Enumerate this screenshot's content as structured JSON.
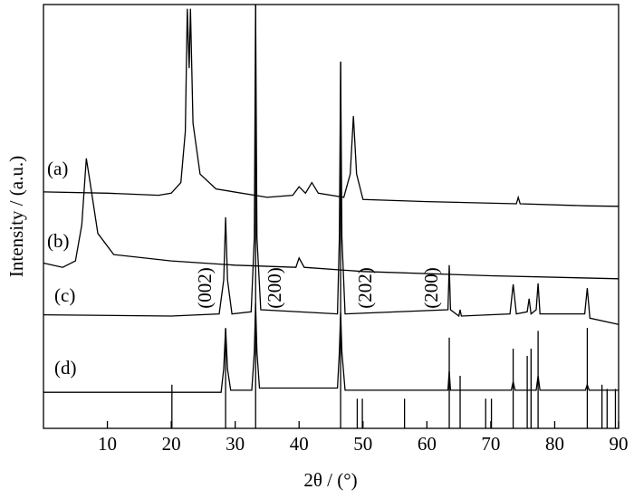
{
  "chart_data": {
    "type": "line",
    "xlabel": "2θ / (°)",
    "ylabel": "Intensity / (a.u.)",
    "xlim": [
      0,
      90
    ],
    "xticks": [
      10,
      20,
      30,
      40,
      50,
      60,
      70,
      80,
      90
    ],
    "ylim": [
      0,
      100
    ],
    "series": [
      {
        "name": "(a)",
        "color": "#000000",
        "x": [
          0,
          10,
          18,
          20,
          21.5,
          22.2,
          22.5,
          22.8,
          23.0,
          23.4,
          24.5,
          27,
          35,
          39,
          40,
          41,
          42,
          43,
          47,
          48,
          48.5,
          49,
          50,
          60,
          74,
          74.3,
          74.6,
          85,
          90
        ],
        "values": [
          55.8,
          55.5,
          55,
          55.5,
          58,
          70,
          99,
          85,
          99,
          72,
          60,
          56.5,
          54.5,
          55,
          57,
          55.5,
          58,
          55.5,
          54.5,
          60,
          73.7,
          60,
          54,
          53.5,
          53,
          54.5,
          53,
          52.5,
          52.4
        ]
      },
      {
        "name": "(b)",
        "color": "#000000",
        "x": [
          0,
          3,
          5,
          6,
          6.7,
          7.3,
          8.5,
          11,
          20,
          30,
          39.5,
          40,
          40.8,
          50,
          70,
          90
        ],
        "values": [
          39,
          38,
          39.5,
          48,
          63.7,
          58,
          46,
          41,
          39.5,
          38.5,
          38,
          40.2,
          38,
          37,
          36,
          35.3
        ]
      },
      {
        "name": "(c)",
        "color": "#000000",
        "x": [
          0,
          20,
          27.5,
          28.2,
          28.5,
          28.8,
          29.5,
          32.5,
          33,
          33.2,
          33.4,
          34,
          46,
          46.3,
          46.5,
          46.7,
          47.2,
          63.3,
          63.5,
          63.7,
          65,
          65.2,
          65.4,
          73,
          73.5,
          74,
          75.7,
          76,
          76.3,
          77.1,
          77.4,
          77.7,
          84.7,
          85.1,
          85.5,
          90
        ],
        "values": [
          26.8,
          26.5,
          27,
          35,
          49.8,
          35,
          27,
          27.5,
          45,
          100,
          45,
          28,
          27,
          45,
          86.5,
          45,
          27,
          28,
          38.5,
          28,
          26.5,
          28,
          26.5,
          27,
          34,
          27,
          27.5,
          30.6,
          27,
          28,
          34.2,
          27,
          27,
          33.1,
          26,
          24.5
        ]
      },
      {
        "name": "(d)",
        "color": "#000000",
        "x": [
          0,
          27.8,
          28.2,
          28.5,
          28.8,
          29.3,
          32.6,
          33,
          33.2,
          33.4,
          33.8,
          46,
          46.3,
          46.5,
          46.7,
          47.2,
          63.3,
          63.5,
          63.7,
          73.2,
          73.5,
          73.8,
          77.1,
          77.4,
          77.7,
          84.8,
          85.1,
          85.4,
          90
        ],
        "values": [
          8.5,
          8.5,
          14,
          23.7,
          14,
          9,
          9,
          18,
          29.5,
          18,
          9.5,
          9.5,
          18,
          27.4,
          18,
          9,
          9,
          13.5,
          9,
          9,
          11,
          9,
          9,
          12.4,
          9,
          9,
          10.3,
          9,
          9
        ]
      }
    ],
    "reference_lines": {
      "x": [
        20.1,
        28.5,
        33.2,
        46.5,
        49.1,
        49.9,
        56.5,
        63.5,
        65.2,
        69.2,
        70.1,
        73.5,
        75.7,
        76.3,
        77.4,
        85.1,
        87.4,
        88.2,
        89.5
      ],
      "values": [
        10.3,
        23.5,
        100,
        86.5,
        7,
        7,
        7,
        21.4,
        12.4,
        7,
        7,
        18.8,
        17.1,
        18.8,
        23,
        23.7,
        10.3,
        9.3,
        9.3
      ]
    },
    "annotations": [
      "(002)",
      "(200)",
      "(202)",
      "(200)"
    ]
  }
}
